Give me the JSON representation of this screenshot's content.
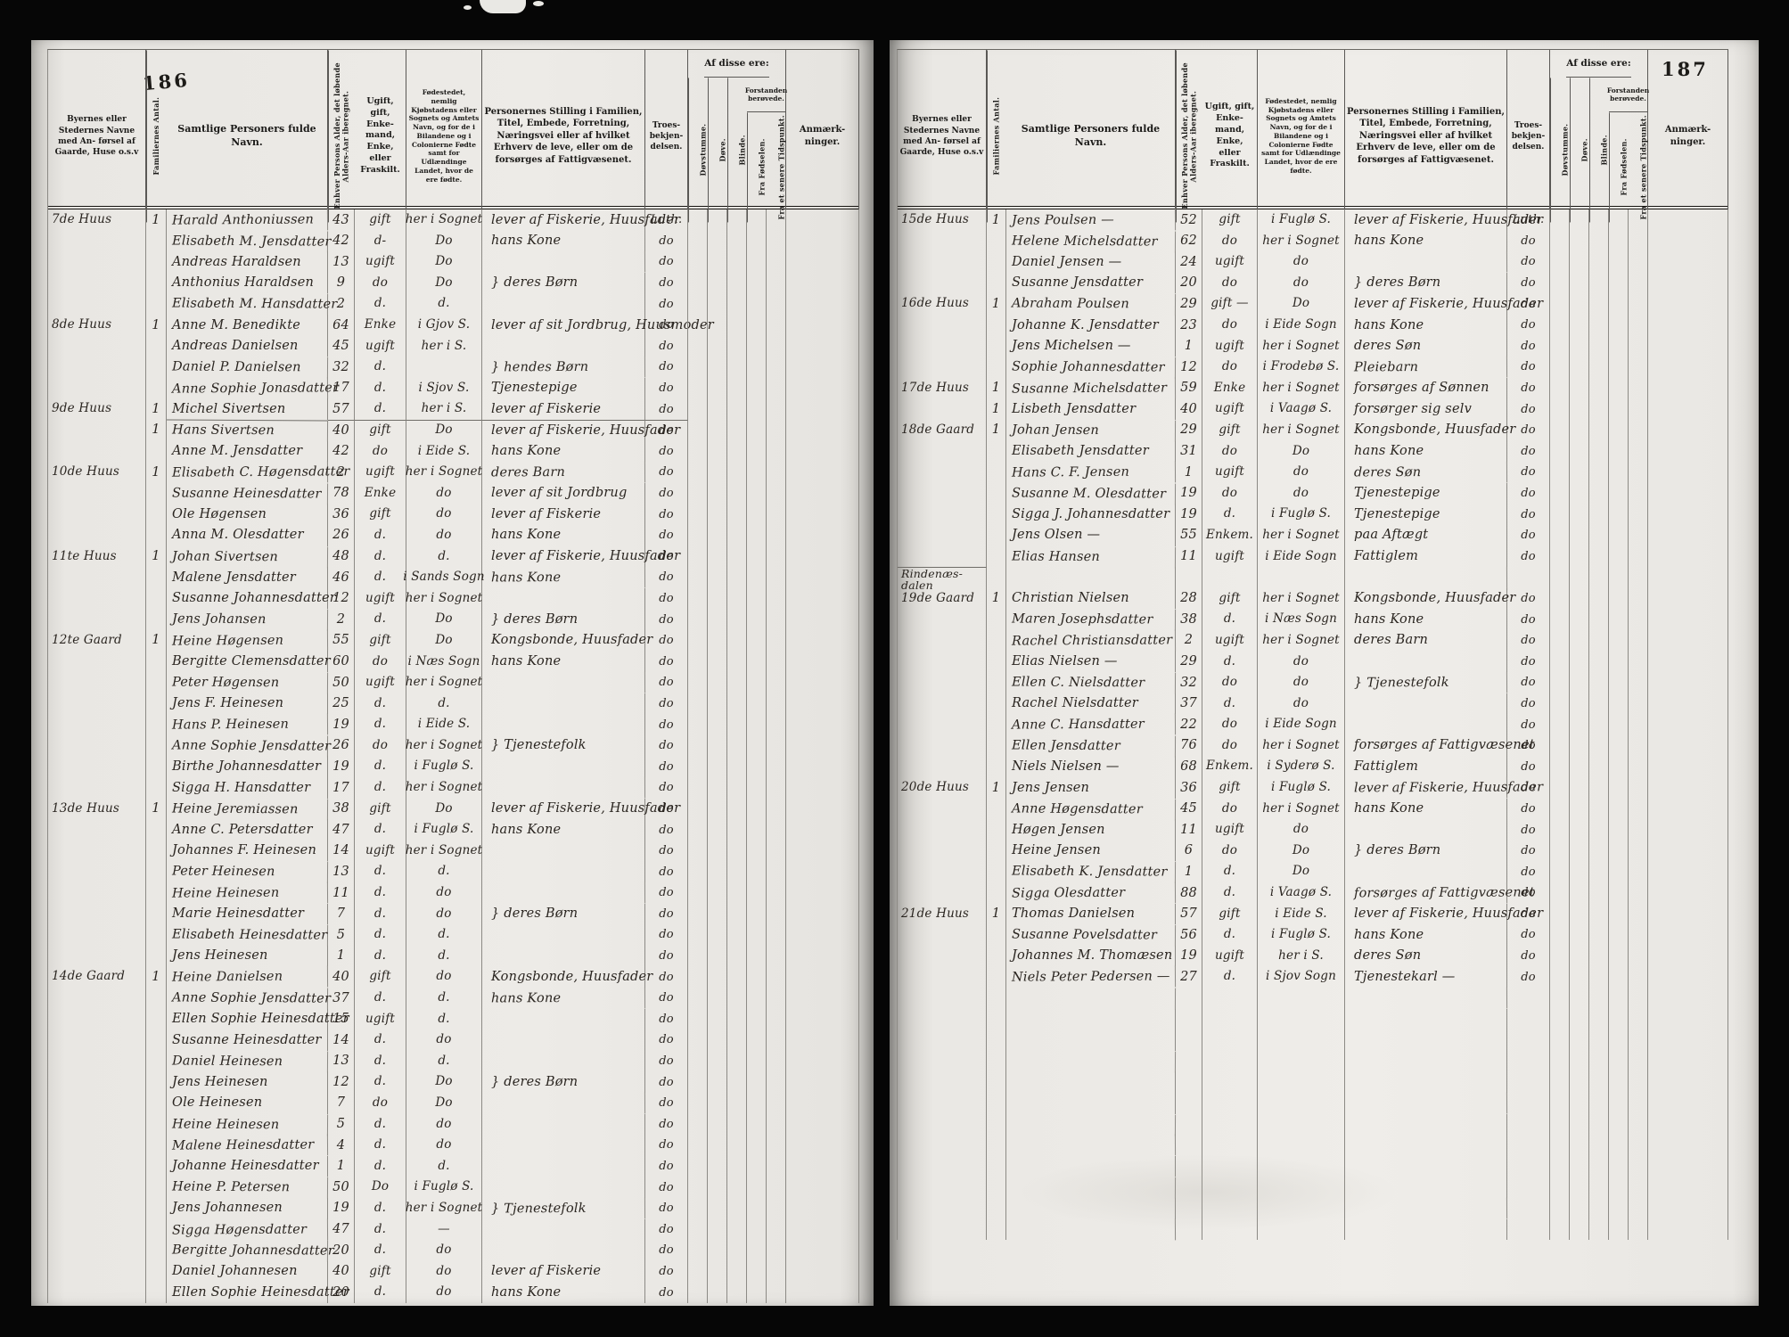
{
  "columns": {
    "place": "Byernes eller Stedernes Navne med An- førsel af Gaarde, Huse o.s.v",
    "families": "Familiernes Antal.",
    "name": "Samtlige Personers fulde Navn.",
    "age": "Enhver Persons Alder, det løbende Alders-Aar iberegnet.",
    "status": "Ugift, gift, Enke- mand, Enke, eller Fraskilt.",
    "birthplace": "Fødestedet, nemlig Kjøbstadens eller Sognets og Amtets Navn, og for de i Bilandene og i Colonierne Fødte samt for Udlændinge Landet, hvor de ere fødte.",
    "position": "Personernes Stilling i Familien, Titel, Embede, Forretning, Næringsvei eller af hvilket Erhverv de leve, eller om de forsørges af Fattigvæsenet.",
    "religion": "Troes- bekjen- delsen.",
    "of_these": "Af disse ere:",
    "deaf_mute": "Døvstumme.",
    "deaf": "Døve.",
    "blind": "Blinde.",
    "deranged": "Forstanden berøvede.",
    "from_birth": "Fra Fødselen.",
    "from_later": "Fra et senere Tidspunkt.",
    "remarks": "Anmærk- ninger."
  },
  "pages": [
    {
      "page_number": "186",
      "empty_rows": 0,
      "rows": [
        {
          "place": "7de Huus",
          "fam": "1",
          "name": "Harald Anthoniussen",
          "age": "43",
          "status": "gift",
          "birth": "her i Sognet",
          "occ": "lever af Fiskerie, Huusfader",
          "rel": "Luth."
        },
        {
          "name": "Elisabeth M. Jensdatter",
          "age": "42",
          "status": "d-",
          "birth": "Do",
          "occ": "hans Kone",
          "rel": "do"
        },
        {
          "name": "Andreas Haraldsen",
          "age": "13",
          "status": "ugift",
          "birth": "Do",
          "occ": "",
          "rel": "do"
        },
        {
          "name": "Anthonius Haraldsen",
          "age": "9",
          "status": "do",
          "birth": "Do",
          "occ": "} deres Børn",
          "rel": "do"
        },
        {
          "name": "Elisabeth M. Hansdatter",
          "age": "2",
          "status": "d.",
          "birth": "d.",
          "occ": "",
          "rel": "do"
        },
        {
          "place": "8de Huus",
          "fam": "1",
          "name": "Anne M. Benedikte",
          "age": "64",
          "status": "Enke",
          "birth": "i Gjov S.",
          "occ": "lever af sit Jordbrug, Huusmoder",
          "rel": "do"
        },
        {
          "name": "Andreas Danielsen",
          "age": "45",
          "status": "ugift",
          "birth": "her i S.",
          "occ": "",
          "rel": "do"
        },
        {
          "name": "Daniel P. Danielsen",
          "age": "32",
          "status": "d.",
          "birth": "",
          "occ": "} hendes Børn",
          "rel": "do"
        },
        {
          "name": "Anne Sophie Jonasdatter",
          "age": "17",
          "status": "d.",
          "birth": "i Sjov S.",
          "occ": "Tjenestepige",
          "rel": "do"
        },
        {
          "place": "9de Huus",
          "fam": "1",
          "name": "Michel Sivertsen",
          "age": "57",
          "status": "d.",
          "birth": "her i S.",
          "occ": "lever af Fiskerie",
          "rel": "do"
        },
        {
          "sep": true,
          "fam": "1",
          "name": "Hans Sivertsen",
          "age": "40",
          "status": "gift",
          "birth": "Do",
          "occ": "lever af Fiskerie, Huusfader",
          "rel": "do"
        },
        {
          "name": "Anne M. Jensdatter",
          "age": "42",
          "status": "do",
          "birth": "i Eide S.",
          "occ": "hans Kone",
          "rel": "do"
        },
        {
          "place": "10de Huus",
          "fam": "1",
          "name": "Elisabeth C. Høgensdatter",
          "age": "2",
          "status": "ugift",
          "birth": "her i Sognet",
          "occ": "deres Barn",
          "rel": "do"
        },
        {
          "name": "Susanne Heinesdatter",
          "age": "78",
          "status": "Enke",
          "birth": "do",
          "occ": "lever af sit Jordbrug",
          "rel": "do"
        },
        {
          "name": "Ole Høgensen",
          "age": "36",
          "status": "gift",
          "birth": "do",
          "occ": "lever af Fiskerie",
          "rel": "do"
        },
        {
          "name": "Anna M. Olesdatter",
          "age": "26",
          "status": "d.",
          "birth": "do",
          "occ": "hans Kone",
          "rel": "do"
        },
        {
          "place": "11te Huus",
          "fam": "1",
          "name": "Johan Sivertsen",
          "age": "48",
          "status": "d.",
          "birth": "d.",
          "occ": "lever af Fiskerie, Huusfader",
          "rel": "do"
        },
        {
          "name": "Malene Jensdatter",
          "age": "46",
          "status": "d.",
          "birth": "i Sands Sogn",
          "occ": "hans Kone",
          "rel": "do"
        },
        {
          "name": "Susanne Johannesdatter",
          "age": "12",
          "status": "ugift",
          "birth": "her i Sognet",
          "occ": "",
          "rel": "do"
        },
        {
          "name": "Jens Johansen",
          "age": "2",
          "status": "d.",
          "birth": "Do",
          "occ": "} deres Børn",
          "rel": "do"
        },
        {
          "place": "12te Gaard",
          "fam": "1",
          "name": "Heine Høgensen",
          "age": "55",
          "status": "gift",
          "birth": "Do",
          "occ": "Kongsbonde, Huusfader",
          "rel": "do"
        },
        {
          "name": "Bergitte Clemensdatter",
          "age": "60",
          "status": "do",
          "birth": "i Næs Sogn",
          "occ": "hans Kone",
          "rel": "do"
        },
        {
          "name": "Peter Høgensen",
          "age": "50",
          "status": "ugift",
          "birth": "her i Sognet",
          "occ": "",
          "rel": "do"
        },
        {
          "name": "Jens F. Heinesen",
          "age": "25",
          "status": "d.",
          "birth": "d.",
          "occ": "",
          "rel": "do"
        },
        {
          "name": "Hans P. Heinesen",
          "age": "19",
          "status": "d.",
          "birth": "i Eide S.",
          "occ": "",
          "rel": "do"
        },
        {
          "name": "Anne Sophie Jensdatter",
          "age": "26",
          "status": "do",
          "birth": "her i Sognet",
          "occ": "} Tjenestefolk",
          "rel": "do"
        },
        {
          "name": "Birthe Johannesdatter",
          "age": "19",
          "status": "d.",
          "birth": "i Fuglø S.",
          "occ": "",
          "rel": "do"
        },
        {
          "name": "Sigga H. Hansdatter",
          "age": "17",
          "status": "d.",
          "birth": "her i Sognet",
          "occ": "",
          "rel": "do"
        },
        {
          "place": "13de Huus",
          "fam": "1",
          "name": "Heine Jeremiassen",
          "age": "38",
          "status": "gift",
          "birth": "Do",
          "occ": "lever af Fiskerie, Huusfader",
          "rel": "do"
        },
        {
          "name": "Anne C. Petersdatter",
          "age": "47",
          "status": "d.",
          "birth": "i Fuglø S.",
          "occ": "hans Kone",
          "rel": "do"
        },
        {
          "name": "Johannes F. Heinesen",
          "age": "14",
          "status": "ugift",
          "birth": "her i Sognet",
          "occ": "",
          "rel": "do"
        },
        {
          "name": "Peter Heinesen",
          "age": "13",
          "status": "d.",
          "birth": "d.",
          "occ": "",
          "rel": "do"
        },
        {
          "name": "Heine Heinesen",
          "age": "11",
          "status": "d.",
          "birth": "do",
          "occ": "",
          "rel": "do"
        },
        {
          "name": "Marie Heinesdatter",
          "age": "7",
          "status": "d.",
          "birth": "do",
          "occ": "} deres Børn",
          "rel": "do"
        },
        {
          "name": "Elisabeth Heinesdatter",
          "age": "5",
          "status": "d.",
          "birth": "d.",
          "occ": "",
          "rel": "do"
        },
        {
          "name": "Jens Heinesen",
          "age": "1",
          "status": "d.",
          "birth": "d.",
          "occ": "",
          "rel": "do"
        },
        {
          "place": "14de Gaard",
          "fam": "1",
          "name": "Heine Danielsen",
          "age": "40",
          "status": "gift",
          "birth": "do",
          "occ": "Kongsbonde, Huusfader",
          "rel": "do"
        },
        {
          "name": "Anne Sophie Jensdatter",
          "age": "37",
          "status": "d.",
          "birth": "d.",
          "occ": "hans Kone",
          "rel": "do"
        },
        {
          "name": "Ellen Sophie Heinesdatter",
          "age": "15",
          "status": "ugift",
          "birth": "d.",
          "occ": "",
          "rel": "do"
        },
        {
          "name": "Susanne Heinesdatter",
          "age": "14",
          "status": "d.",
          "birth": "do",
          "occ": "",
          "rel": "do"
        },
        {
          "name": "Daniel Heinesen",
          "age": "13",
          "status": "d.",
          "birth": "d.",
          "occ": "",
          "rel": "do"
        },
        {
          "name": "Jens Heinesen",
          "age": "12",
          "status": "d.",
          "birth": "Do",
          "occ": "} deres Børn",
          "rel": "do"
        },
        {
          "name": "Ole Heinesen",
          "age": "7",
          "status": "do",
          "birth": "Do",
          "occ": "",
          "rel": "do"
        },
        {
          "name": "Heine Heinesen",
          "age": "5",
          "status": "d.",
          "birth": "do",
          "occ": "",
          "rel": "do"
        },
        {
          "name": "Malene Heinesdatter",
          "age": "4",
          "status": "d.",
          "birth": "do",
          "occ": "",
          "rel": "do"
        },
        {
          "name": "Johanne Heinesdatter",
          "age": "1",
          "status": "d.",
          "birth": "d.",
          "occ": "",
          "rel": "do"
        },
        {
          "name": "Heine P. Petersen",
          "age": "50",
          "status": "Do",
          "birth": "i Fuglø S.",
          "occ": "",
          "rel": "do"
        },
        {
          "name": "Jens Johannesen",
          "age": "19",
          "status": "d.",
          "birth": "her i Sognet",
          "occ": "} Tjenestefolk",
          "rel": "do"
        },
        {
          "name": "Sigga Høgensdatter",
          "age": "47",
          "status": "d.",
          "birth": "—",
          "occ": "",
          "rel": "do"
        },
        {
          "name": "Bergitte Johannesdatter",
          "age": "20",
          "status": "d.",
          "birth": "do",
          "occ": "",
          "rel": "do"
        },
        {
          "name": "Daniel Johannesen",
          "age": "40",
          "status": "gift",
          "birth": "do",
          "occ": "lever af Fiskerie",
          "rel": "do"
        },
        {
          "name": "Ellen Sophie Heinesdatter",
          "age": "20",
          "status": "d.",
          "birth": "do",
          "occ": "hans Kone",
          "rel": "do"
        }
      ]
    },
    {
      "page_number": "187",
      "empty_rows": 12,
      "rows": [
        {
          "place": "15de Huus",
          "fam": "1",
          "name": "Jens Poulsen —",
          "age": "52",
          "status": "gift",
          "birth": "i Fuglø S.",
          "occ": "lever af Fiskerie, Huusfader",
          "rel": "Luth."
        },
        {
          "name": "Helene Michelsdatter",
          "age": "62",
          "status": "do",
          "birth": "her i Sognet",
          "occ": "hans Kone",
          "rel": "do"
        },
        {
          "name": "Daniel Jensen —",
          "age": "24",
          "status": "ugift",
          "birth": "do",
          "occ": "",
          "rel": "do"
        },
        {
          "name": "Susanne Jensdatter",
          "age": "20",
          "status": "do",
          "birth": "do",
          "occ": "} deres Børn",
          "rel": "do"
        },
        {
          "place": "16de Huus",
          "fam": "1",
          "name": "Abraham Poulsen",
          "age": "29",
          "status": "gift —",
          "birth": "Do",
          "occ": "lever af Fiskerie, Huusfader",
          "rel": "do"
        },
        {
          "name": "Johanne K. Jensdatter",
          "age": "23",
          "status": "do",
          "birth": "i Eide Sogn",
          "occ": "hans Kone",
          "rel": "do"
        },
        {
          "name": "Jens Michelsen —",
          "age": "1",
          "status": "ugift",
          "birth": "her i Sognet",
          "occ": "deres Søn",
          "rel": "do"
        },
        {
          "name": "Sophie Johannesdatter",
          "age": "12",
          "status": "do",
          "birth": "i Frodebø S.",
          "occ": "Pleiebarn",
          "rel": "do"
        },
        {
          "place": "17de Huus",
          "fam": "1",
          "name": "Susanne Michelsdatter",
          "age": "59",
          "status": "Enke",
          "birth": "her i Sognet",
          "occ": "forsørges af Sønnen",
          "rel": "do"
        },
        {
          "fam": "1",
          "name": "Lisbeth Jensdatter",
          "age": "40",
          "status": "ugift",
          "birth": "i Vaagø S.",
          "occ": "forsørger sig selv",
          "rel": "do"
        },
        {
          "place": "18de Gaard",
          "fam": "1",
          "name": "Johan Jensen",
          "age": "29",
          "status": "gift",
          "birth": "her i Sognet",
          "occ": "Kongsbonde, Huusfader",
          "rel": "do"
        },
        {
          "name": "Elisabeth Jensdatter",
          "age": "31",
          "status": "do",
          "birth": "Do",
          "occ": "hans Kone",
          "rel": "do"
        },
        {
          "name": "Hans C. F. Jensen",
          "age": "1",
          "status": "ugift",
          "birth": "do",
          "occ": "deres Søn",
          "rel": "do"
        },
        {
          "name": "Susanne M. Olesdatter",
          "age": "19",
          "status": "do",
          "birth": "do",
          "occ": "Tjenestepige",
          "rel": "do"
        },
        {
          "name": "Sigga J. Johannesdatter",
          "age": "19",
          "status": "d.",
          "birth": "i Fuglø S.",
          "occ": "Tjenestepige",
          "rel": "do"
        },
        {
          "name": "Jens Olsen —",
          "age": "55",
          "status": "Enkem.",
          "birth": "her i Sognet",
          "occ": "paa Aftægt",
          "rel": "do"
        },
        {
          "name": "Elias Hansen",
          "age": "11",
          "status": "ugift",
          "birth": "i Eide Sogn",
          "occ": "Fattiglem",
          "rel": "do"
        },
        {
          "note": true,
          "place": "Rindenæs-\ndalen"
        },
        {
          "place": "19de Gaard",
          "fam": "1",
          "name": "Christian Nielsen",
          "age": "28",
          "status": "gift",
          "birth": "her i Sognet",
          "occ": "Kongsbonde, Huusfader",
          "rel": "do"
        },
        {
          "name": "Maren Josephsdatter",
          "age": "38",
          "status": "d.",
          "birth": "i Næs Sogn",
          "occ": "hans Kone",
          "rel": "do"
        },
        {
          "name": "Rachel Christiansdatter",
          "age": "2",
          "status": "ugift",
          "birth": "her i Sognet",
          "occ": "deres Barn",
          "rel": "do"
        },
        {
          "name": "Elias Nielsen —",
          "age": "29",
          "status": "d.",
          "birth": "do",
          "occ": "",
          "rel": "do"
        },
        {
          "name": "Ellen C. Nielsdatter",
          "age": "32",
          "status": "do",
          "birth": "do",
          "occ": "} Tjenestefolk",
          "rel": "do"
        },
        {
          "name": "Rachel Nielsdatter",
          "age": "37",
          "status": "d.",
          "birth": "do",
          "occ": "",
          "rel": "do"
        },
        {
          "name": "Anne C. Hansdatter",
          "age": "22",
          "status": "do",
          "birth": "i Eide Sogn",
          "occ": "",
          "rel": "do"
        },
        {
          "name": "Ellen Jensdatter",
          "age": "76",
          "status": "do",
          "birth": "her i Sognet",
          "occ": "forsørges af Fattigvæsenet",
          "rel": "do"
        },
        {
          "name": "Niels Nielsen —",
          "age": "68",
          "status": "Enkem.",
          "birth": "i Syderø S.",
          "occ": "Fattiglem",
          "rel": "do"
        },
        {
          "place": "20de Huus",
          "fam": "1",
          "name": "Jens Jensen",
          "age": "36",
          "status": "gift",
          "birth": "i Fuglø S.",
          "occ": "lever af Fiskerie, Huusfader",
          "rel": "do"
        },
        {
          "name": "Anne Høgensdatter",
          "age": "45",
          "status": "do",
          "birth": "her i Sognet",
          "occ": "hans Kone",
          "rel": "do"
        },
        {
          "name": "Høgen Jensen",
          "age": "11",
          "status": "ugift",
          "birth": "do",
          "occ": "",
          "rel": "do"
        },
        {
          "name": "Heine Jensen",
          "age": "6",
          "status": "do",
          "birth": "Do",
          "occ": "} deres Børn",
          "rel": "do"
        },
        {
          "name": "Elisabeth K. Jensdatter",
          "age": "1",
          "status": "d.",
          "birth": "Do",
          "occ": "",
          "rel": "do"
        },
        {
          "name": "Sigga Olesdatter",
          "age": "88",
          "status": "d.",
          "birth": "i Vaagø S.",
          "occ": "forsørges af Fattigvæsenet",
          "rel": "do"
        },
        {
          "place": "21de Huus",
          "fam": "1",
          "name": "Thomas Danielsen",
          "age": "57",
          "status": "gift",
          "birth": "i Eide S.",
          "occ": "lever af Fiskerie, Huusfader",
          "rel": "do"
        },
        {
          "name": "Susanne Povelsdatter",
          "age": "56",
          "status": "d.",
          "birth": "i Fuglø S.",
          "occ": "hans Kone",
          "rel": "do"
        },
        {
          "name": "Johannes M. Thomæsen",
          "age": "19",
          "status": "ugift",
          "birth": "her i S.",
          "occ": "deres Søn",
          "rel": "do"
        },
        {
          "name": "Niels Peter Pedersen —",
          "age": "27",
          "status": "d.",
          "birth": "i Sjov Sogn",
          "occ": "Tjenestekarl —",
          "rel": "do"
        }
      ]
    }
  ]
}
